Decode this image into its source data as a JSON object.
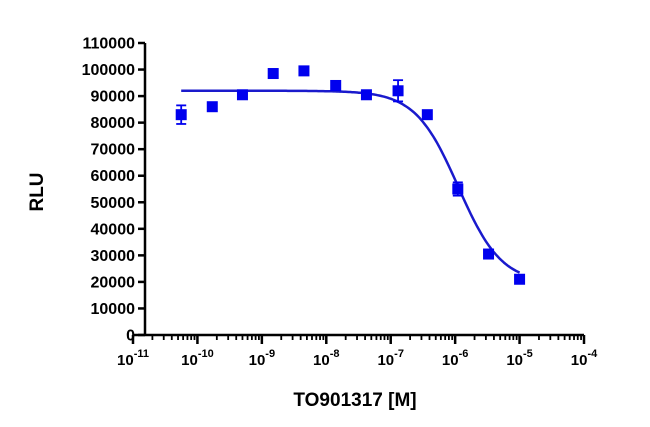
{
  "chart_data": {
    "type": "scatter",
    "xlabel": "TO901317 [M]",
    "ylabel": "RLU",
    "x_scale": "log10",
    "xlim": [
      1e-11,
      0.0001
    ],
    "ylim": [
      0,
      110000
    ],
    "y_ticks": [
      0,
      10000,
      20000,
      30000,
      40000,
      50000,
      60000,
      70000,
      80000,
      90000,
      100000,
      110000
    ],
    "y_tick_labels": [
      "0",
      "10000",
      "20000",
      "30000",
      "40000",
      "50000",
      "60000",
      "70000",
      "80000",
      "90000",
      "100000",
      "110000"
    ],
    "x_ticks": [
      {
        "base": "10",
        "exp": "-11"
      },
      {
        "base": "10",
        "exp": "-10"
      },
      {
        "base": "10",
        "exp": "-9"
      },
      {
        "base": "10",
        "exp": "-8"
      },
      {
        "base": "10",
        "exp": "-7"
      },
      {
        "base": "10",
        "exp": "-6"
      },
      {
        "base": "10",
        "exp": "-5"
      },
      {
        "base": "10",
        "exp": "-4"
      }
    ],
    "marker_color": "#0000ee",
    "curve_color": "#1a1acc",
    "points": [
      {
        "x": 5.6e-11,
        "y": 83000,
        "err": 3500
      },
      {
        "x": 1.7e-10,
        "y": 86000,
        "err": 1200
      },
      {
        "x": 5e-10,
        "y": 90500,
        "err": 1000
      },
      {
        "x": 1.5e-09,
        "y": 98500,
        "err": 800
      },
      {
        "x": 4.5e-09,
        "y": 99500,
        "err": 700
      },
      {
        "x": 1.4e-08,
        "y": 94000,
        "err": 900
      },
      {
        "x": 4.2e-08,
        "y": 90500,
        "err": 900
      },
      {
        "x": 1.3e-07,
        "y": 92000,
        "err": 4000
      },
      {
        "x": 3.7e-07,
        "y": 83000,
        "err": 1200
      },
      {
        "x": 1.1e-06,
        "y": 55000,
        "err": 2500
      },
      {
        "x": 3.3e-06,
        "y": 30500,
        "err": 1500
      },
      {
        "x": 1e-05,
        "y": 21000,
        "err": 800
      }
    ],
    "fit": {
      "model": "four-parameter logistic",
      "top": 92000,
      "bottom": 19500,
      "log_ic50": -5.95,
      "hill": 1.3
    }
  }
}
